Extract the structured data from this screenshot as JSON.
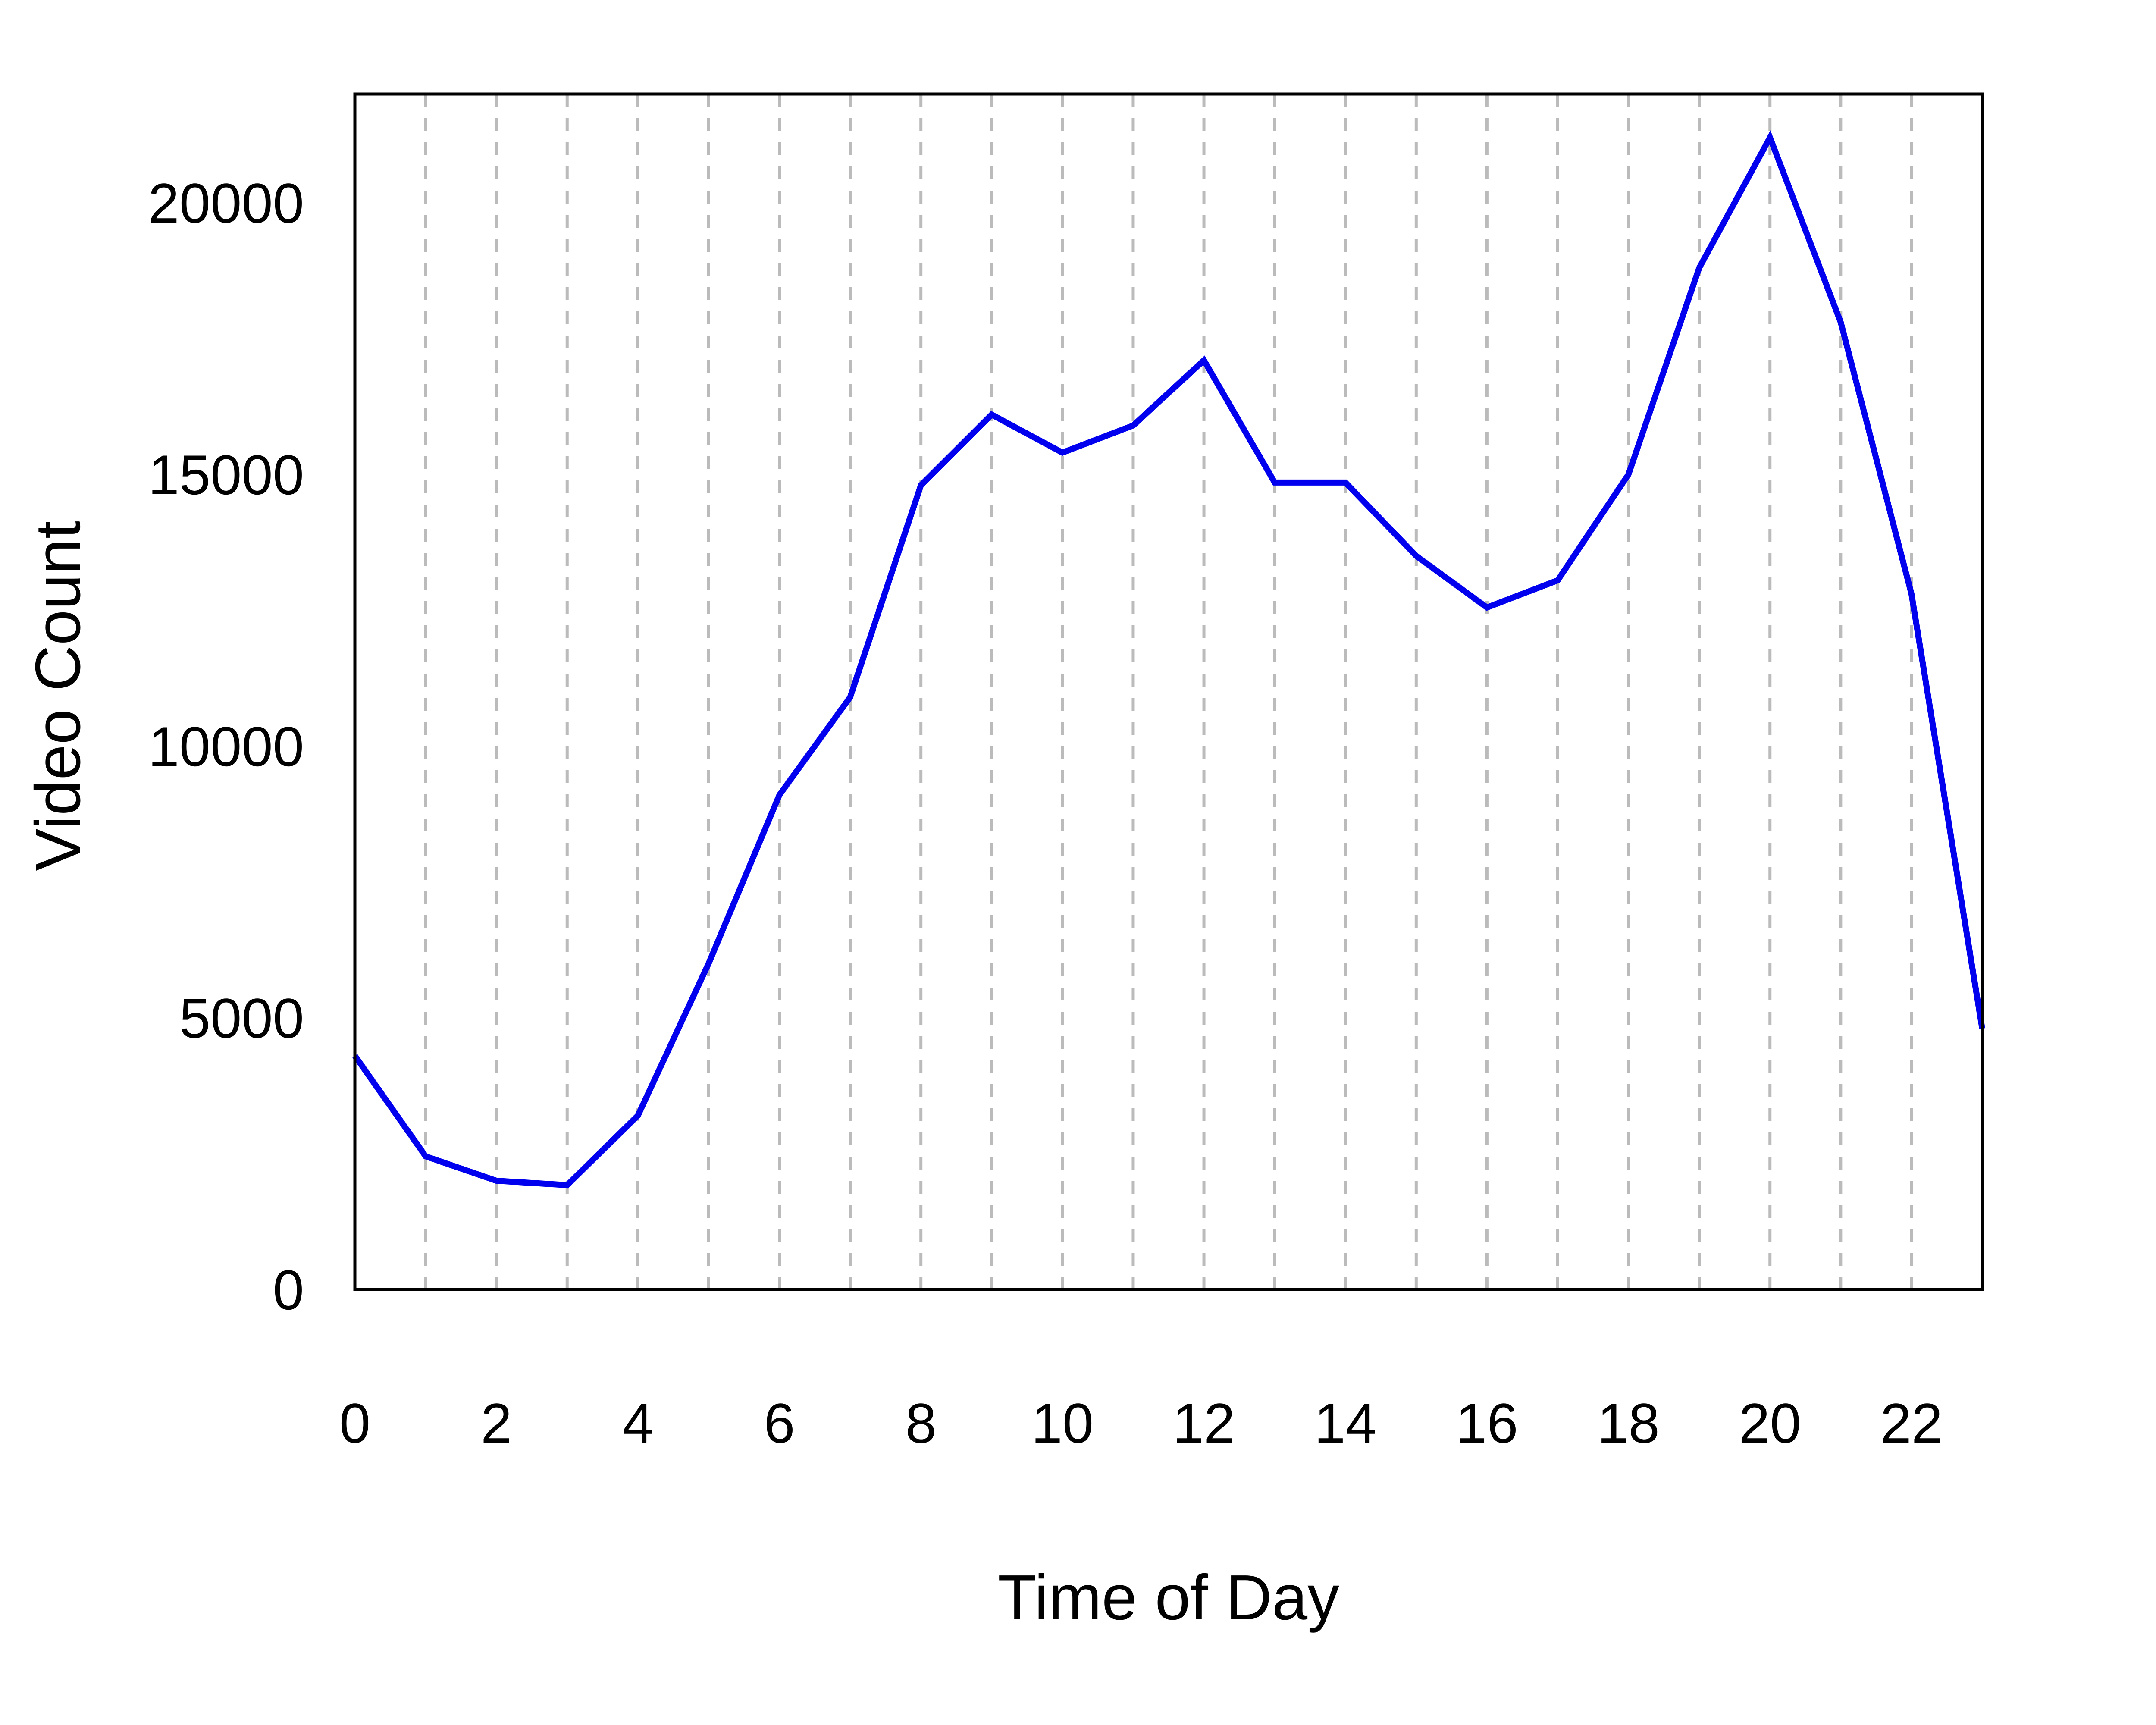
{
  "chart_data": {
    "type": "line",
    "title": "",
    "xlabel": "Time of Day",
    "ylabel": "Video Count",
    "x": [
      0,
      1,
      2,
      3,
      4,
      5,
      6,
      7,
      8,
      9,
      10,
      11,
      12,
      13,
      14,
      15,
      16,
      17,
      18,
      19,
      20,
      21,
      22,
      23
    ],
    "series": [
      {
        "values": [
          4300,
          2450,
          2000,
          1920,
          3200,
          6000,
          9100,
          10900,
          14800,
          16100,
          15400,
          15900,
          17100,
          14850,
          14850,
          13500,
          12550,
          13050,
          15000,
          18800,
          21200,
          17800,
          12800,
          4800
        ],
        "color": "#0000ee"
      }
    ],
    "xlim": [
      0,
      23
    ],
    "ylim": [
      0,
      22000
    ],
    "xticks": [
      "0",
      "2",
      "4",
      "6",
      "8",
      "10",
      "12",
      "14",
      "16",
      "18",
      "20",
      "22"
    ],
    "yticks": [
      "0",
      "5000",
      "10000",
      "15000",
      "20000"
    ],
    "grid": {
      "vertical": true,
      "horizontal": false,
      "style": "dashed",
      "color": "#bbbbbb"
    },
    "legend": "none"
  }
}
